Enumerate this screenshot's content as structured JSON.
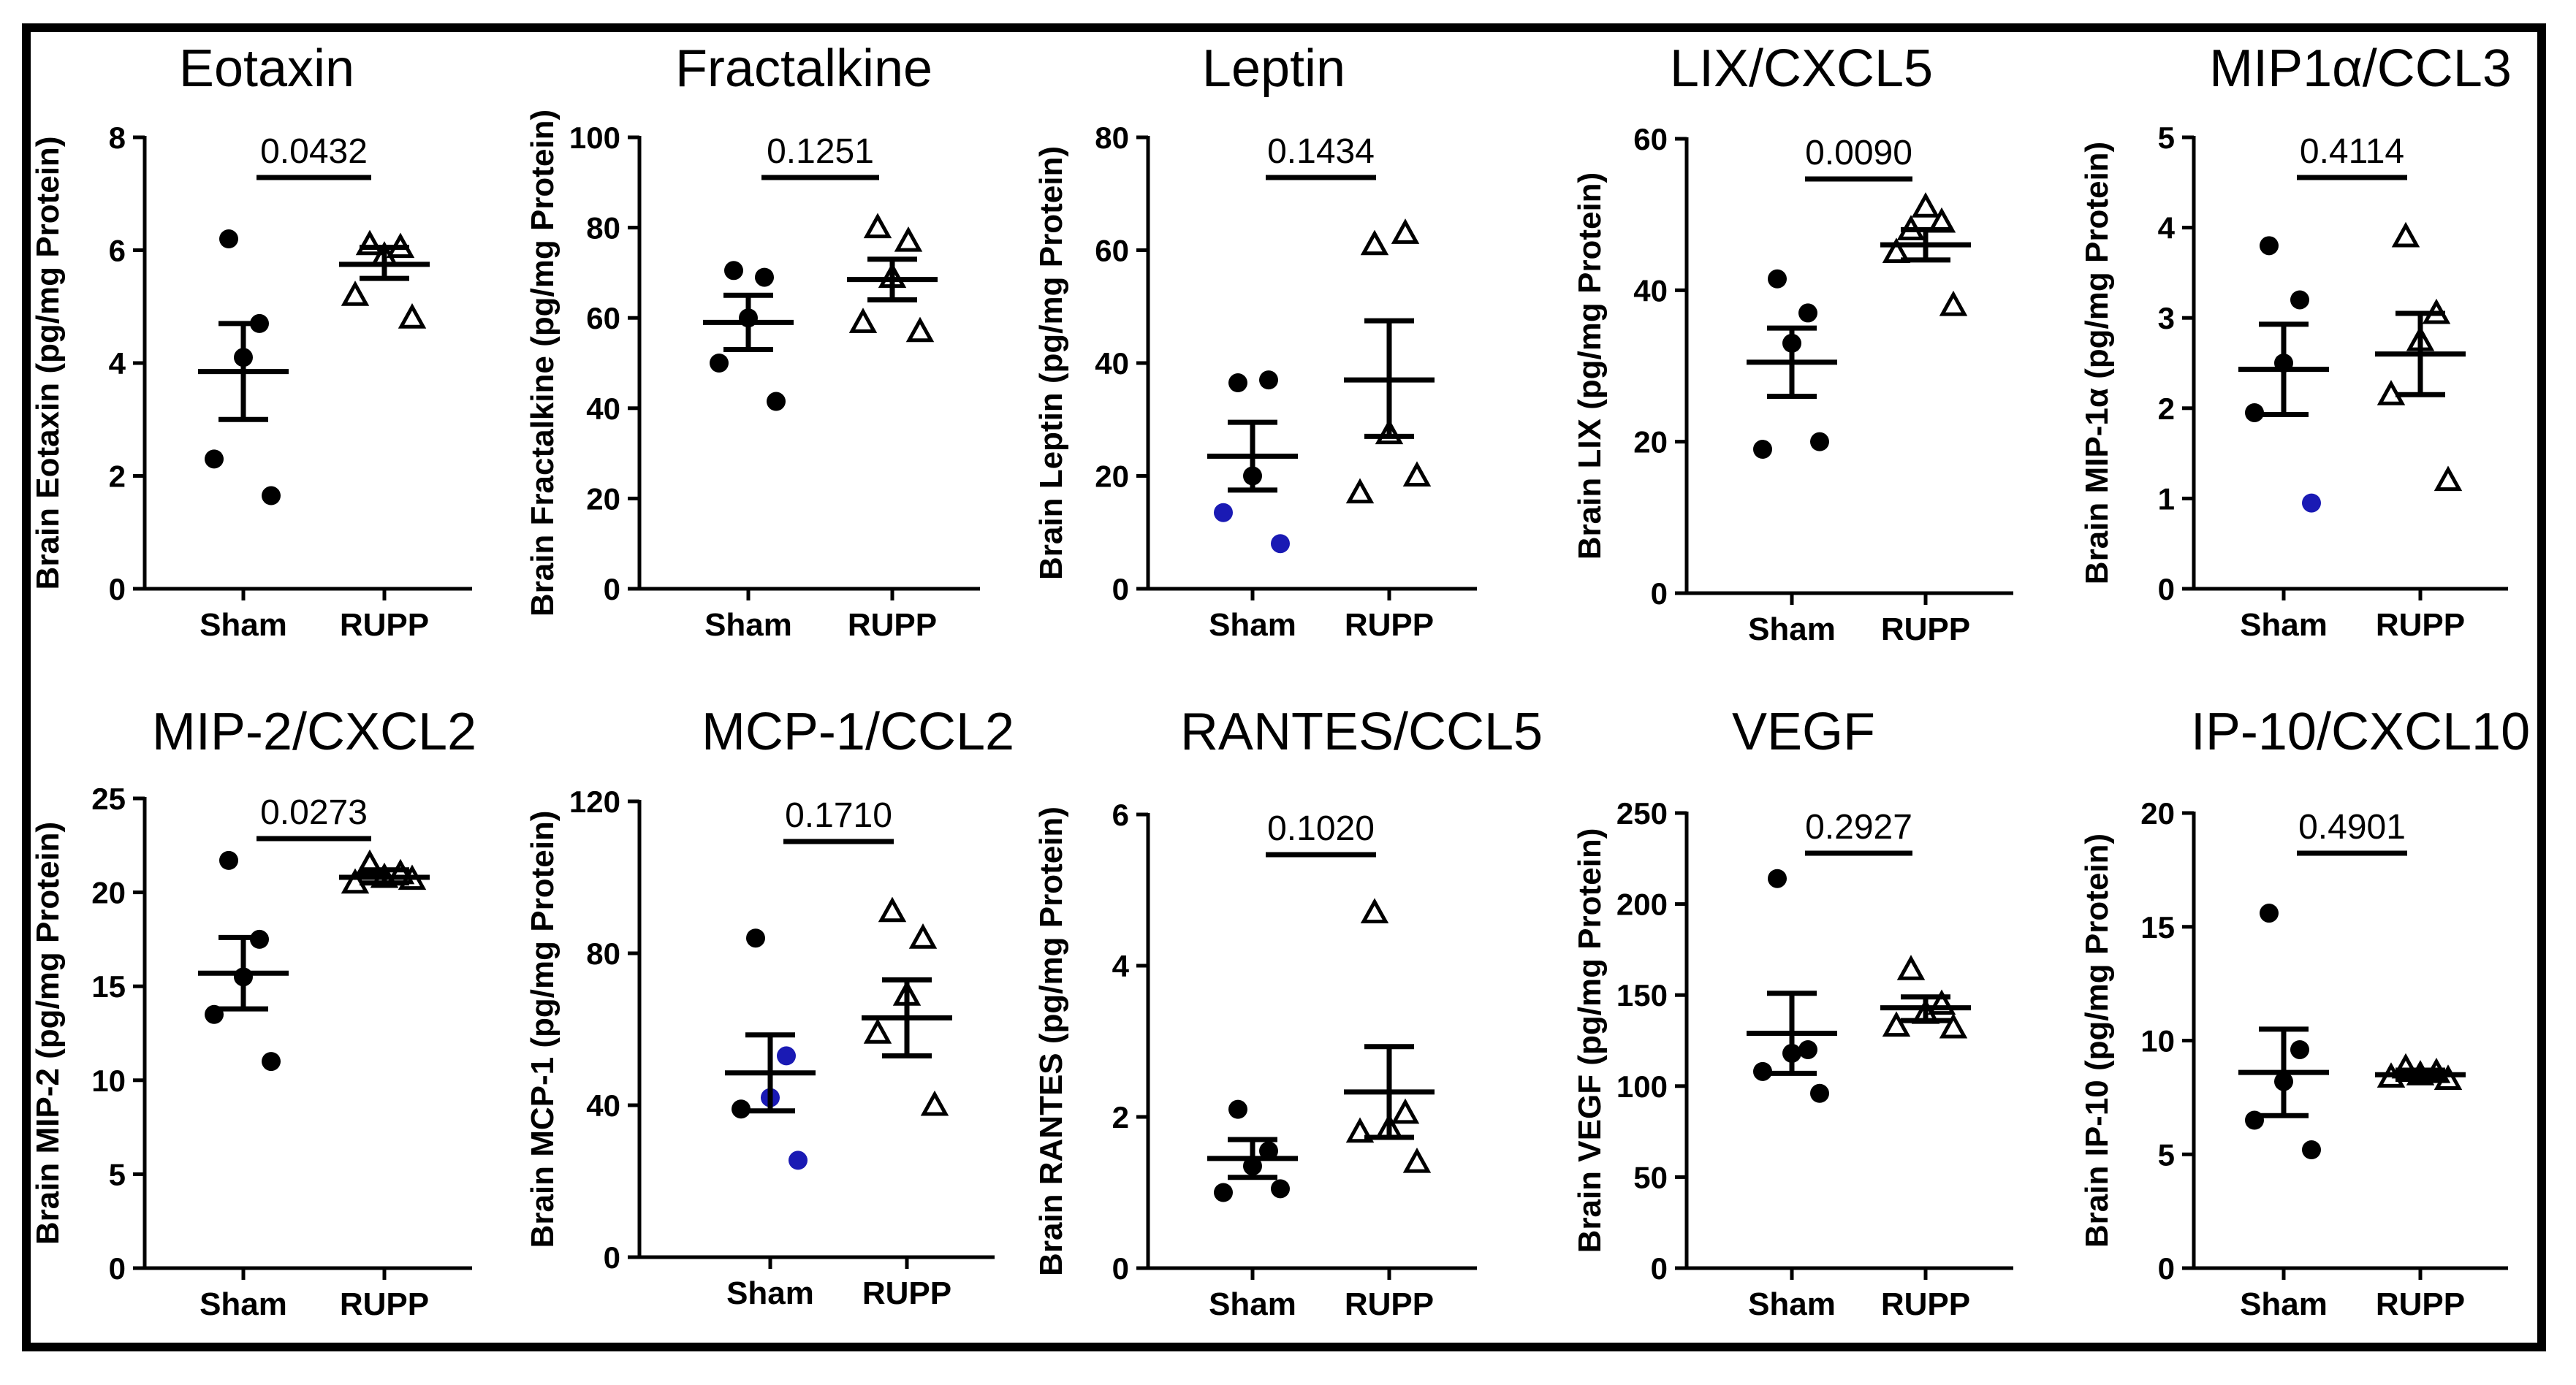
{
  "chart_data": [
    {
      "type": "scatter",
      "title": "Eotaxin",
      "ylabel": "Brain Eotaxin (pg/mg Protein)",
      "categories": [
        "Sham",
        "RUPP"
      ],
      "ylim": [
        0,
        8
      ],
      "yticks": [
        "0",
        "2",
        "4",
        "6",
        "8"
      ],
      "p_value": "0.0432",
      "groups": [
        {
          "name": "Sham",
          "marker": "circle",
          "values": [
            6.2,
            4.7,
            4.1,
            2.3,
            1.65
          ],
          "mean": 3.85,
          "sem_low": 3.0,
          "sem_high": 4.7
        },
        {
          "name": "RUPP",
          "marker": "triangle",
          "values": [
            6.1,
            6.05,
            5.9,
            5.2,
            4.8
          ],
          "mean": 5.75,
          "sem_low": 5.5,
          "sem_high": 6.05
        }
      ]
    },
    {
      "type": "scatter",
      "title": "Fractalkine",
      "ylabel": "Brain Fractalkine (pg/mg Protein)",
      "categories": [
        "Sham",
        "RUPP"
      ],
      "ylim": [
        0,
        100
      ],
      "yticks": [
        "0",
        "20",
        "40",
        "60",
        "80",
        "100"
      ],
      "p_value": "0.1251",
      "groups": [
        {
          "name": "Sham",
          "marker": "circle",
          "values": [
            70.5,
            69,
            60,
            50,
            41.5
          ],
          "mean": 59,
          "sem_low": 53,
          "sem_high": 65
        },
        {
          "name": "RUPP",
          "marker": "triangle",
          "values": [
            80,
            77,
            69,
            59,
            57
          ],
          "mean": 68.5,
          "sem_low": 64,
          "sem_high": 73
        }
      ]
    },
    {
      "type": "scatter",
      "title": "Leptin",
      "ylabel": "Brain Leptin (pg/mg Protein)",
      "categories": [
        "Sham",
        "RUPP"
      ],
      "ylim": [
        0,
        80
      ],
      "yticks": [
        "0",
        "20",
        "40",
        "60",
        "80"
      ],
      "p_value": "0.1434",
      "groups": [
        {
          "name": "Sham",
          "marker": "circle",
          "values": [
            36.5,
            37,
            20,
            13.5,
            8
          ],
          "highlight": [
            false,
            false,
            false,
            true,
            true
          ],
          "mean": 23.5,
          "sem_low": 17.5,
          "sem_high": 29.5
        },
        {
          "name": "RUPP",
          "marker": "triangle",
          "values": [
            61,
            63,
            27.5,
            17,
            20
          ],
          "mean": 37,
          "sem_low": 27,
          "sem_high": 47.5
        }
      ]
    },
    {
      "type": "scatter",
      "title": "LIX/CXCL5",
      "ylabel": "Brain LIX (pg/mg Protein)",
      "categories": [
        "Sham",
        "RUPP"
      ],
      "ylim": [
        0,
        60
      ],
      "yticks": [
        "0",
        "20",
        "40",
        "60"
      ],
      "p_value": "0.0090",
      "groups": [
        {
          "name": "Sham",
          "marker": "circle",
          "values": [
            41.5,
            37,
            33,
            19,
            20
          ],
          "mean": 30.5,
          "sem_low": 26,
          "sem_high": 35
        },
        {
          "name": "RUPP",
          "marker": "triangle",
          "values": [
            48,
            49,
            51,
            45,
            38
          ],
          "mean": 46,
          "sem_low": 44,
          "sem_high": 48
        },
        {
          "name": "_",
          "marker": "none",
          "values": []
        }
      ]
    },
    {
      "type": "scatter",
      "title": "MIP1α/CCL3",
      "ylabel": "Brain MIP-1α (pg/mg Protein)",
      "categories": [
        "Sham",
        "RUPP"
      ],
      "ylim": [
        0,
        5
      ],
      "yticks": [
        "0",
        "1",
        "2",
        "3",
        "4",
        "5"
      ],
      "p_value": "0.4114",
      "groups": [
        {
          "name": "Sham",
          "marker": "circle",
          "values": [
            3.8,
            3.2,
            2.5,
            1.95,
            0.95
          ],
          "highlight": [
            false,
            false,
            false,
            false,
            true
          ],
          "mean": 2.43,
          "sem_low": 1.93,
          "sem_high": 2.93
        },
        {
          "name": "RUPP",
          "marker": "triangle",
          "values": [
            3.9,
            3.05,
            2.75,
            2.15,
            1.2
          ],
          "mean": 2.6,
          "sem_low": 2.15,
          "sem_high": 3.05
        }
      ]
    },
    {
      "type": "scatter",
      "title": "MIP-2/CXCL2",
      "ylabel": "Brain MIP-2 (pg/mg Protein)",
      "categories": [
        "Sham",
        "RUPP"
      ],
      "ylim": [
        0,
        25
      ],
      "yticks": [
        "0",
        "5",
        "10",
        "15",
        "20",
        "25"
      ],
      "p_value": "0.0273",
      "groups": [
        {
          "name": "Sham",
          "marker": "circle",
          "values": [
            21.7,
            17.5,
            15.5,
            13.5,
            11
          ],
          "mean": 15.7,
          "sem_low": 13.8,
          "sem_high": 17.6
        },
        {
          "name": "RUPP",
          "marker": "triangle",
          "values": [
            21.5,
            21,
            20.8,
            20.5,
            20.7
          ],
          "mean": 20.8,
          "sem_low": 20.5,
          "sem_high": 21.2
        }
      ]
    },
    {
      "type": "scatter",
      "title": "MCP-1/CCL2",
      "ylabel": "Brain MCP-1 (pg/mg Protein)",
      "categories": [
        "Sham",
        "RUPP"
      ],
      "ylim": [
        0,
        120
      ],
      "yticks": [
        "0",
        "40",
        "80",
        "120"
      ],
      "p_value": "0.1710",
      "groups": [
        {
          "name": "Sham",
          "marker": "circle",
          "values": [
            84,
            53,
            42,
            39,
            25.5
          ],
          "highlight": [
            false,
            true,
            true,
            false,
            true
          ],
          "mean": 48.5,
          "sem_low": 38.5,
          "sem_high": 58.5
        },
        {
          "name": "RUPP",
          "marker": "triangle",
          "values": [
            91,
            84,
            69,
            59,
            40
          ],
          "mean": 63,
          "sem_low": 53,
          "sem_high": 73
        }
      ]
    },
    {
      "type": "scatter",
      "title": "RANTES/CCL5",
      "ylabel": "Brain RANTES (pg/mg Protein)",
      "categories": [
        "Sham",
        "RUPP"
      ],
      "ylim": [
        0,
        6
      ],
      "yticks": [
        "0",
        "2",
        "4",
        "6"
      ],
      "p_value": "0.1020",
      "groups": [
        {
          "name": "Sham",
          "marker": "circle",
          "values": [
            2.1,
            1.55,
            1.35,
            1.0,
            1.05
          ],
          "mean": 1.45,
          "sem_low": 1.2,
          "sem_high": 1.7
        },
        {
          "name": "RUPP",
          "marker": "triangle",
          "values": [
            4.7,
            2.05,
            1.85,
            1.8,
            1.4
          ],
          "mean": 2.33,
          "sem_low": 1.73,
          "sem_high": 2.93
        }
      ]
    },
    {
      "type": "scatter",
      "title": "VEGF",
      "ylabel": "Brain VEGF (pg/mg Protein)",
      "categories": [
        "Sham",
        "RUPP"
      ],
      "ylim": [
        0,
        250
      ],
      "yticks": [
        "0",
        "50",
        "100",
        "150",
        "200",
        "250"
      ],
      "p_value": "0.2927",
      "groups": [
        {
          "name": "Sham",
          "marker": "circle",
          "values": [
            214,
            120,
            118,
            108,
            96
          ],
          "mean": 129,
          "sem_low": 107,
          "sem_high": 151
        },
        {
          "name": "RUPP",
          "marker": "triangle",
          "values": [
            164,
            145,
            140,
            133,
            132
          ],
          "mean": 143,
          "sem_low": 136,
          "sem_high": 149
        }
      ]
    },
    {
      "type": "scatter",
      "title": "IP-10/CXCL10",
      "ylabel": "Brain IP-10 (pg/mg Protein)",
      "categories": [
        "Sham",
        "RUPP"
      ],
      "ylim": [
        0,
        20
      ],
      "yticks": [
        "0",
        "5",
        "10",
        "15",
        "20"
      ],
      "p_value": "0.4901",
      "groups": [
        {
          "name": "Sham",
          "marker": "circle",
          "values": [
            15.6,
            9.6,
            8.2,
            6.5,
            5.2
          ],
          "mean": 8.6,
          "sem_low": 6.7,
          "sem_high": 10.5
        },
        {
          "name": "RUPP",
          "marker": "triangle",
          "values": [
            8.8,
            8.6,
            8.5,
            8.4,
            8.3
          ],
          "mean": 8.5,
          "sem_low": 8.3,
          "sem_high": 8.7
        }
      ]
    }
  ],
  "colors": {
    "ink": "#000000",
    "highlight": "#1a1ab4",
    "background": "#ffffff"
  }
}
